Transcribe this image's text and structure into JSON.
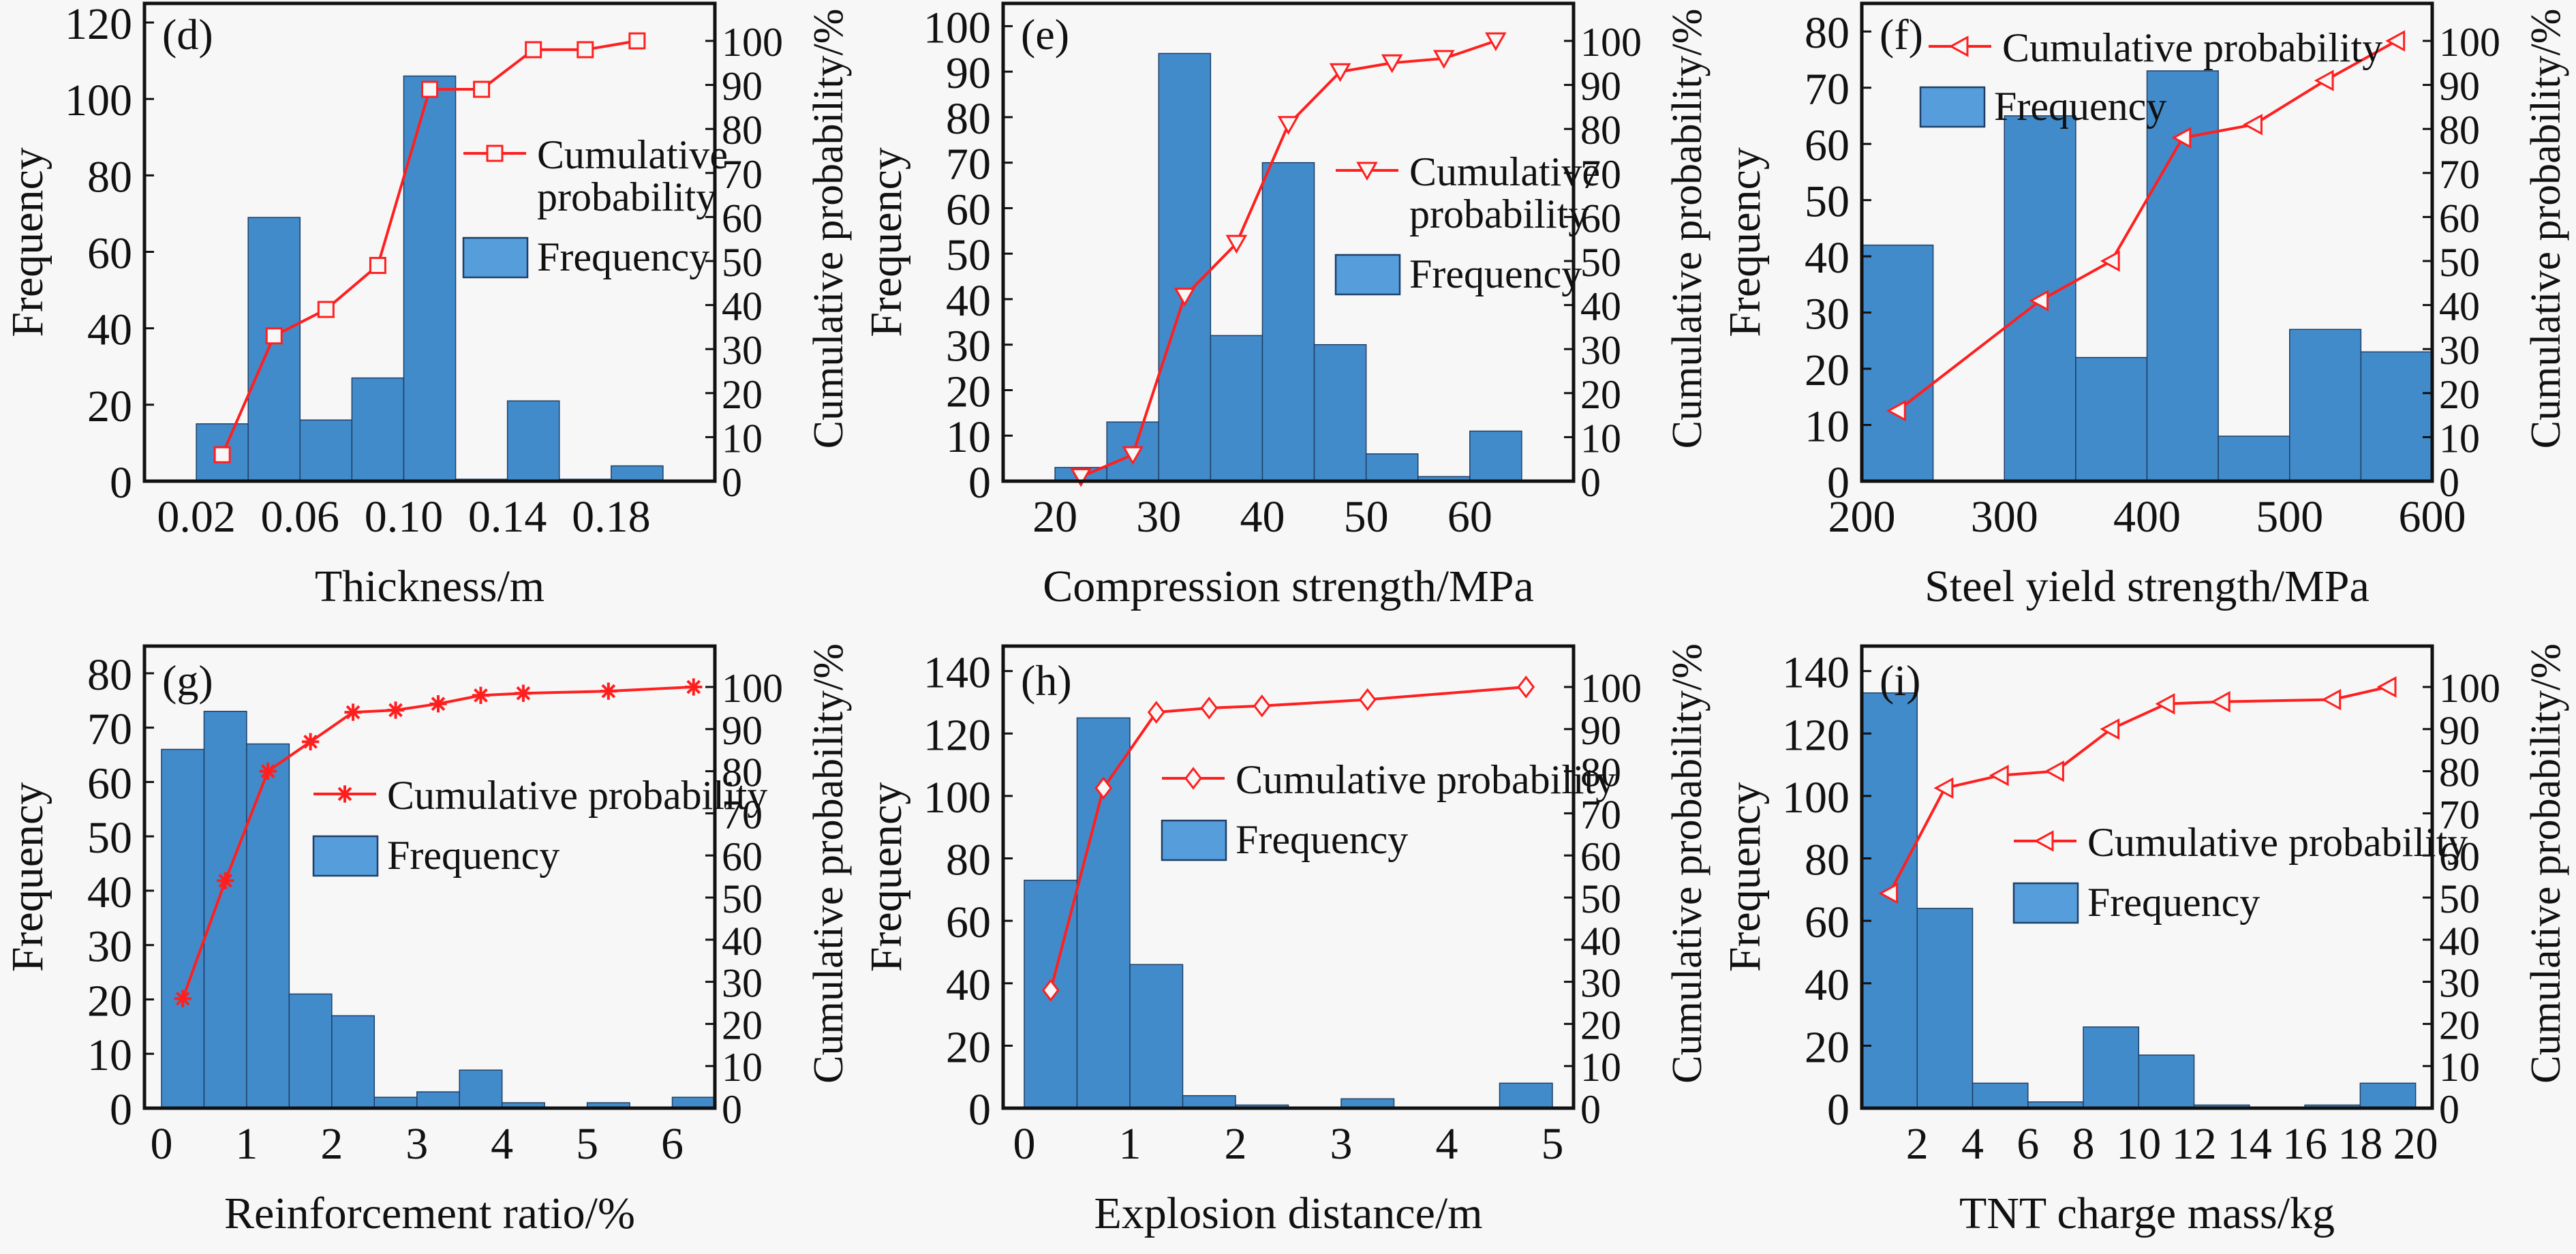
{
  "colors": {
    "bar_fill": "#428bca",
    "bar_stroke": "#1f3f66",
    "legend_bar_fill": "#569ddc",
    "line": "#ff1f1f",
    "axis": "#111111",
    "background": "#f7f7f7"
  },
  "chart_data": [
    {
      "id": "d",
      "type": "bar",
      "panel_label": "(d)",
      "xlabel": "Thickness/m",
      "ylabel": "Frequency",
      "y2label": "Cumulative probability/%",
      "xlim": [
        0.0,
        0.22
      ],
      "ylim": [
        0,
        125
      ],
      "y2lim": [
        0,
        100
      ],
      "xticks": [
        0.02,
        0.06,
        0.1,
        0.14,
        0.18
      ],
      "xtick_labels": [
        "0.02",
        "0.06",
        "0.10",
        "0.14",
        "0.18"
      ],
      "yticks": [
        0,
        20,
        40,
        60,
        80,
        100,
        120
      ],
      "y2ticks": [
        0,
        10,
        20,
        30,
        40,
        50,
        60,
        70,
        80,
        90,
        100
      ],
      "bins": [
        [
          0.02,
          0.04
        ],
        [
          0.04,
          0.06
        ],
        [
          0.06,
          0.08
        ],
        [
          0.08,
          0.1
        ],
        [
          0.1,
          0.12
        ],
        [
          0.12,
          0.14
        ],
        [
          0.14,
          0.16
        ],
        [
          0.16,
          0.18
        ],
        [
          0.18,
          0.2
        ]
      ],
      "frequency": [
        15,
        69,
        16,
        27,
        106,
        0.5,
        21,
        0.5,
        4
      ],
      "cumulative": {
        "x": [
          0.03,
          0.05,
          0.07,
          0.09,
          0.11,
          0.13,
          0.15,
          0.17,
          0.19
        ],
        "y": [
          6,
          33,
          39,
          49,
          89,
          89,
          98,
          98,
          100
        ]
      },
      "marker": "square",
      "legend": {
        "line_label": [
          "Cumulative",
          "probability"
        ],
        "bar_label": "Frequency",
        "position": "center-right"
      }
    },
    {
      "id": "e",
      "type": "bar",
      "panel_label": "(e)",
      "xlabel": "Compression strength/MPa",
      "ylabel": "Frequency",
      "y2label": "Cumulative probability/%",
      "xlim": [
        15,
        70
      ],
      "ylim": [
        0,
        105
      ],
      "y2lim": [
        0,
        100
      ],
      "xticks": [
        20,
        30,
        40,
        50,
        60
      ],
      "xtick_labels": [
        "20",
        "30",
        "40",
        "50",
        "60"
      ],
      "yticks": [
        0,
        10,
        20,
        30,
        40,
        50,
        60,
        70,
        80,
        90,
        100
      ],
      "y2ticks": [
        0,
        10,
        20,
        30,
        40,
        50,
        60,
        70,
        80,
        90,
        100
      ],
      "bins": [
        [
          20,
          25
        ],
        [
          25,
          30
        ],
        [
          30,
          35
        ],
        [
          35,
          40
        ],
        [
          40,
          45
        ],
        [
          45,
          50
        ],
        [
          50,
          55
        ],
        [
          55,
          60
        ],
        [
          60,
          65
        ]
      ],
      "frequency": [
        3,
        13,
        94,
        32,
        70,
        30,
        6,
        1,
        11
      ],
      "cumulative": {
        "x": [
          22.5,
          27.5,
          32.5,
          37.5,
          42.5,
          47.5,
          52.5,
          57.5,
          62.5
        ],
        "y": [
          1,
          6,
          42,
          54,
          81,
          93,
          95,
          96,
          100
        ]
      },
      "marker": "triangle-down",
      "legend": {
        "line_label": [
          "Cumulative",
          "probability"
        ],
        "bar_label": "Frequency",
        "position": "center-right"
      }
    },
    {
      "id": "f",
      "type": "bar",
      "panel_label": "(f)",
      "xlabel": "Steel yield strength/MPa",
      "ylabel": "Frequency",
      "y2label": "Cumulative probability/%",
      "xlim": [
        200,
        600
      ],
      "ylim": [
        0,
        85
      ],
      "y2lim": [
        0,
        100
      ],
      "xticks": [
        200,
        300,
        400,
        500,
        600
      ],
      "xtick_labels": [
        "200",
        "300",
        "400",
        "500",
        "600"
      ],
      "yticks": [
        0,
        10,
        20,
        30,
        40,
        50,
        60,
        70,
        80
      ],
      "y2ticks": [
        0,
        10,
        20,
        30,
        40,
        50,
        60,
        70,
        80,
        90,
        100
      ],
      "bins": [
        [
          200,
          250
        ],
        [
          250,
          300
        ],
        [
          300,
          350
        ],
        [
          350,
          400
        ],
        [
          400,
          450
        ],
        [
          450,
          500
        ],
        [
          500,
          550
        ],
        [
          550,
          600
        ]
      ],
      "frequency": [
        42,
        0,
        65,
        22,
        73,
        8,
        27,
        23
      ],
      "cumulative": {
        "x": [
          225,
          325,
          375,
          425,
          475,
          525,
          575
        ],
        "y": [
          16,
          41,
          50,
          78,
          81,
          91,
          100
        ]
      },
      "marker": "triangle-left",
      "legend": {
        "line_label": [
          "Cumulative probability"
        ],
        "bar_label": "Frequency",
        "position": "top-left"
      }
    },
    {
      "id": "g",
      "type": "bar",
      "panel_label": "(g)",
      "xlabel": "Reinforcement ratio/%",
      "ylabel": "Frequency",
      "y2label": "Cumulative probability/%",
      "xlim": [
        -0.2,
        6.5
      ],
      "ylim": [
        0,
        85
      ],
      "y2lim": [
        0,
        100
      ],
      "xticks": [
        0,
        1,
        2,
        3,
        4,
        5,
        6
      ],
      "xtick_labels": [
        "0",
        "1",
        "2",
        "3",
        "4",
        "5",
        "6"
      ],
      "yticks": [
        0,
        10,
        20,
        30,
        40,
        50,
        60,
        70,
        80
      ],
      "y2ticks": [
        0,
        10,
        20,
        30,
        40,
        50,
        60,
        70,
        80,
        90,
        100
      ],
      "bins": [
        [
          0,
          0.5
        ],
        [
          0.5,
          1
        ],
        [
          1,
          1.5
        ],
        [
          1.5,
          2
        ],
        [
          2,
          2.5
        ],
        [
          2.5,
          3
        ],
        [
          3,
          3.5
        ],
        [
          3.5,
          4
        ],
        [
          4,
          4.5
        ],
        [
          4.5,
          5
        ],
        [
          5,
          5.5
        ],
        [
          5.5,
          6
        ],
        [
          6,
          6.5
        ]
      ],
      "frequency": [
        66,
        73,
        67,
        21,
        17,
        2,
        3,
        7,
        1,
        0,
        1,
        0,
        2
      ],
      "cumulative": {
        "x": [
          0.25,
          0.75,
          1.25,
          1.75,
          2.25,
          2.75,
          3.25,
          3.75,
          4.25,
          5.25,
          6.25
        ],
        "y": [
          26,
          54,
          80,
          87,
          94,
          94.5,
          96,
          98,
          98.5,
          99,
          100
        ]
      },
      "marker": "asterisk",
      "legend": {
        "line_label": [
          "Cumulative probability"
        ],
        "bar_label": "Frequency",
        "position": "center-right"
      }
    },
    {
      "id": "h",
      "type": "bar",
      "panel_label": "(h)",
      "xlabel": "Explosion distance/m",
      "ylabel": "Frequency",
      "y2label": "Cumulative probability/%",
      "xlim": [
        -0.2,
        5.2
      ],
      "ylim": [
        0,
        148
      ],
      "y2lim": [
        0,
        100
      ],
      "xticks": [
        0,
        1,
        2,
        3,
        4,
        5
      ],
      "xtick_labels": [
        "0",
        "1",
        "2",
        "3",
        "4",
        "5"
      ],
      "yticks": [
        0,
        20,
        40,
        60,
        80,
        100,
        120,
        140
      ],
      "y2ticks": [
        0,
        10,
        20,
        30,
        40,
        50,
        60,
        70,
        80,
        90,
        100
      ],
      "bins": [
        [
          0,
          0.5
        ],
        [
          0.5,
          1
        ],
        [
          1,
          1.5
        ],
        [
          1.5,
          2
        ],
        [
          2,
          2.5
        ],
        [
          2.5,
          3
        ],
        [
          3,
          3.5
        ],
        [
          3.5,
          4
        ],
        [
          4,
          4.5
        ],
        [
          4.5,
          5
        ]
      ],
      "frequency": [
        73,
        125,
        46,
        4,
        1,
        0,
        3,
        0,
        0,
        8
      ],
      "cumulative": {
        "x": [
          0.25,
          0.75,
          1.25,
          1.75,
          2.25,
          3.25,
          4.75
        ],
        "y": [
          28,
          76,
          94,
          95,
          95.5,
          97,
          100
        ]
      },
      "marker": "diamond",
      "legend": {
        "line_label": [
          "Cumulative probability"
        ],
        "bar_label": "Frequency",
        "position": "center-right"
      }
    },
    {
      "id": "i",
      "type": "bar",
      "panel_label": "(i)",
      "xlabel": "TNT charge mass/kg",
      "ylabel": "Frequency",
      "y2label": "Cumulative probability/%",
      "xlim": [
        0,
        20.6
      ],
      "ylim": [
        0,
        148
      ],
      "y2lim": [
        0,
        100
      ],
      "xticks": [
        2,
        4,
        6,
        8,
        10,
        12,
        14,
        16,
        18,
        20
      ],
      "xtick_labels": [
        "2",
        "4",
        "6",
        "8",
        "10",
        "12",
        "14",
        "16",
        "18",
        "20"
      ],
      "yticks": [
        0,
        20,
        40,
        60,
        80,
        100,
        120,
        140
      ],
      "y2ticks": [
        0,
        10,
        20,
        30,
        40,
        50,
        60,
        70,
        80,
        90,
        100
      ],
      "bins": [
        [
          0,
          2
        ],
        [
          2,
          4
        ],
        [
          4,
          6
        ],
        [
          6,
          8
        ],
        [
          8,
          10
        ],
        [
          10,
          12
        ],
        [
          12,
          14
        ],
        [
          14,
          16
        ],
        [
          16,
          18
        ],
        [
          18,
          20
        ]
      ],
      "frequency": [
        133,
        64,
        8,
        2,
        26,
        17,
        1,
        0,
        1,
        8
      ],
      "cumulative": {
        "x": [
          1,
          3,
          5,
          7,
          9,
          11,
          13,
          17,
          19
        ],
        "y": [
          51,
          76,
          79,
          80,
          90,
          96,
          96.5,
          97,
          100
        ]
      },
      "marker": "triangle-left",
      "legend": {
        "line_label": [
          "Cumulative probability"
        ],
        "bar_label": "Frequency",
        "position": "center-right"
      }
    }
  ]
}
